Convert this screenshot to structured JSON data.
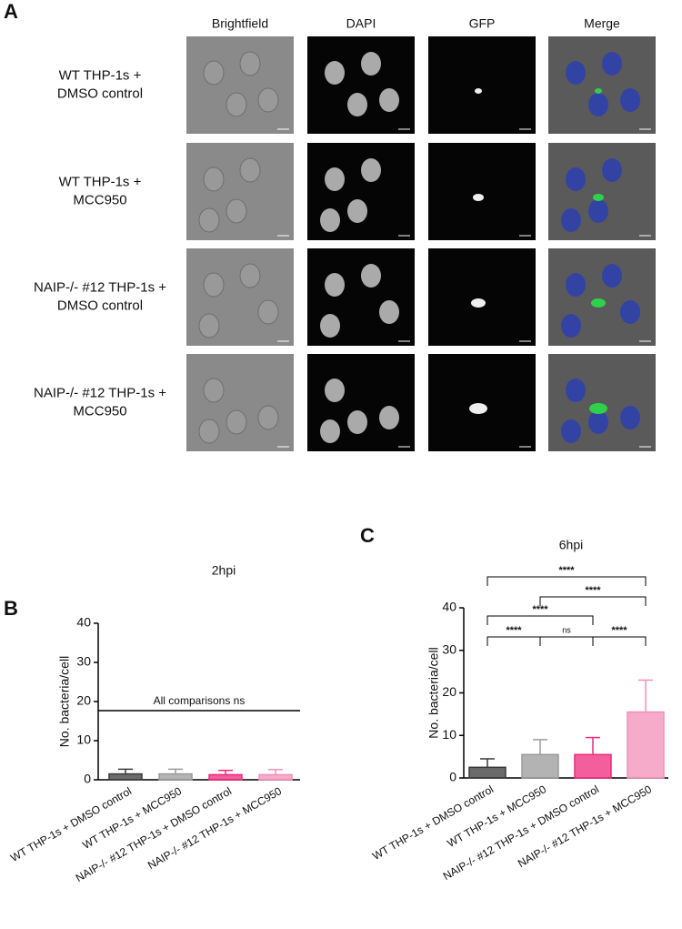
{
  "panel_a": {
    "label": "A",
    "columns": [
      "Brightfield",
      "DAPI",
      "GFP",
      "Merge"
    ],
    "rows": [
      [
        "WT THP-1s +",
        "DMSO control"
      ],
      [
        "WT THP-1s +",
        "MCC950"
      ],
      [
        "NAIP-/- #12 THP-1s +",
        "DMSO control"
      ],
      [
        "NAIP-/- #12 THP-1s +",
        "MCC950"
      ]
    ]
  },
  "chart_data": [
    {
      "panel": "B",
      "type": "bar",
      "title": "2hpi",
      "y_label": "No. bacteria/cell",
      "categories": [
        "WT THP-1s + DMSO control",
        "WT THP-1s + MCC950",
        "NAIP-/- #12 THP-1s + DMSO control",
        "NAIP-/- #12 THP-1s + MCC950"
      ],
      "values": [
        1.5,
        1.5,
        1.3,
        1.3
      ],
      "errors": [
        1.2,
        1.2,
        1.1,
        1.3
      ],
      "colors": [
        "#3a3a3a",
        "#9a9a9a",
        "#ee2a7b",
        "#f48fb8"
      ],
      "ylim": [
        0,
        40
      ],
      "yticks": [
        0,
        10,
        20,
        30,
        40
      ],
      "annotation": "All comparisons ns"
    },
    {
      "panel": "C",
      "type": "bar",
      "title": "6hpi",
      "y_label": "No. bacteria/cell",
      "categories": [
        "WT THP-1s + DMSO control",
        "WT THP-1s + MCC950",
        "NAIP-/- #12 THP-1s + DMSO control",
        "NAIP-/- #12 THP-1s + MCC950"
      ],
      "values": [
        2.5,
        5.5,
        5.5,
        15.5
      ],
      "errors": [
        2,
        3.5,
        4,
        7.5
      ],
      "colors": [
        "#3a3a3a",
        "#9a9a9a",
        "#ee2a7b",
        "#f48fb8"
      ],
      "ylim": [
        0,
        40
      ],
      "yticks": [
        0,
        10,
        20,
        30,
        40
      ],
      "comparisons": [
        "****",
        "****",
        "****",
        "****",
        "ns",
        "****"
      ]
    }
  ]
}
